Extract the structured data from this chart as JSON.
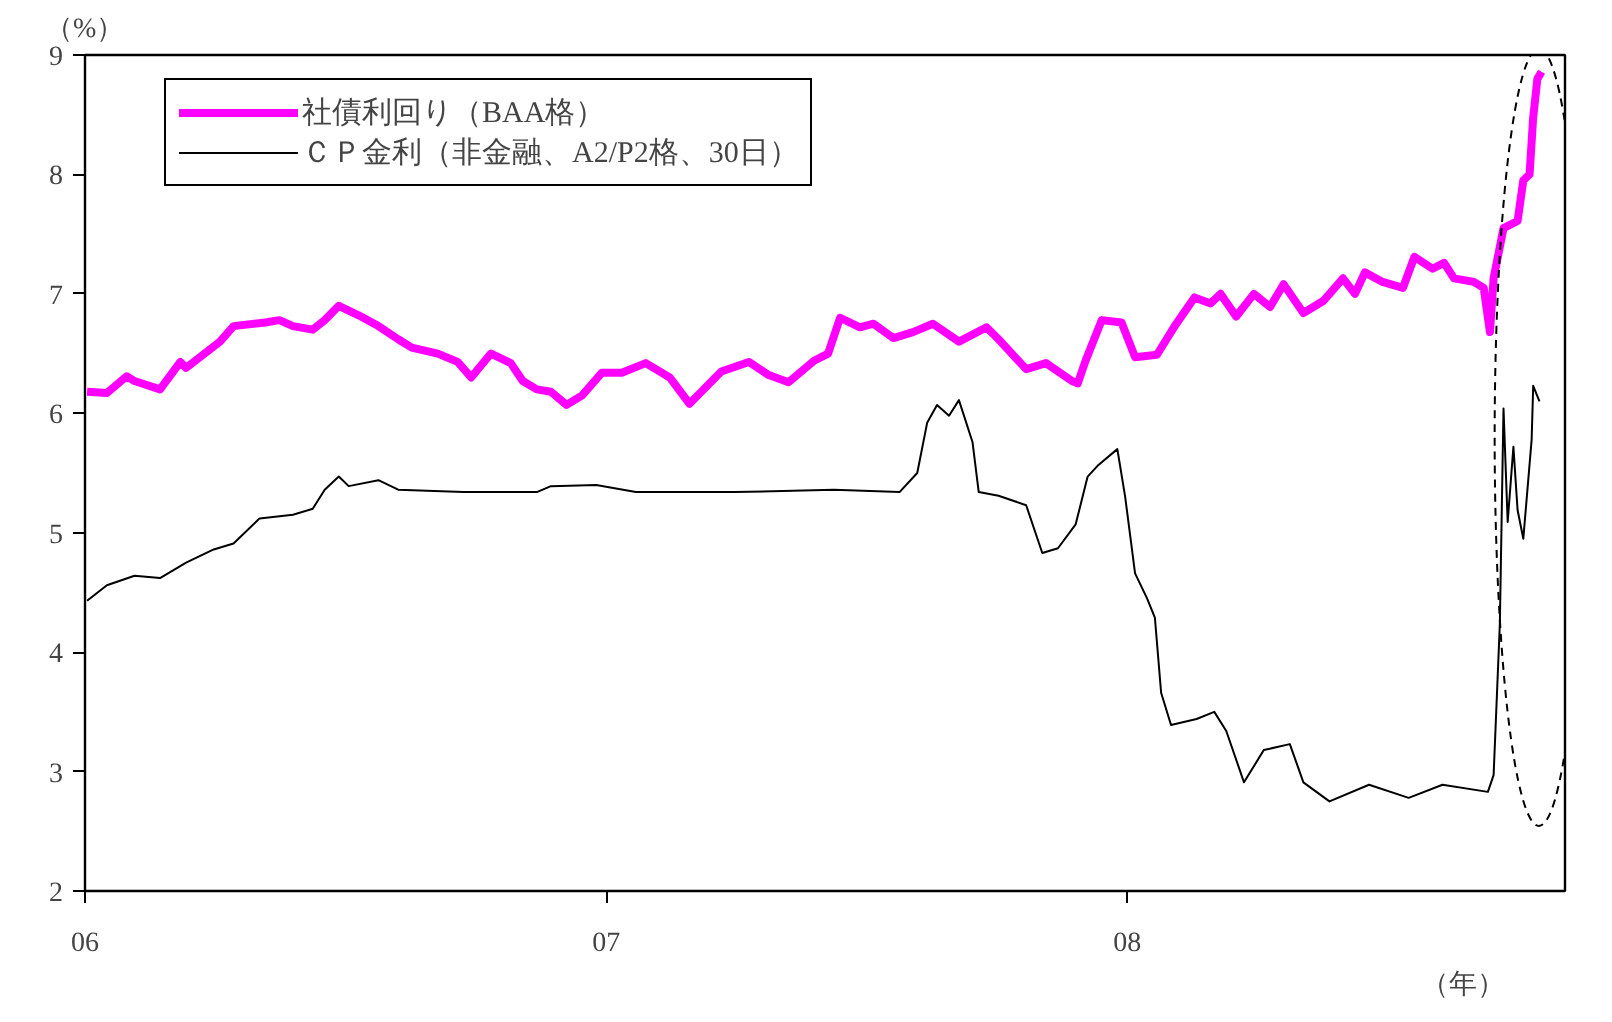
{
  "chart_data": {
    "type": "line",
    "ylabel": "（%）",
    "xlabel": "（年）",
    "xlim": [
      2006,
      2008.84
    ],
    "xticks": [
      {
        "value": 2006,
        "label": "06"
      },
      {
        "value": 2007,
        "label": "07"
      },
      {
        "value": 2008,
        "label": "08"
      }
    ],
    "ylim": [
      2,
      9
    ],
    "yticks": [
      2,
      3,
      4,
      5,
      6,
      7,
      8,
      9
    ],
    "grid": false,
    "legend": "top left",
    "line_style": "solid",
    "series": [
      {
        "name": "社債利回り（BAA格）",
        "color": "#ff00ff",
        "x": [
          2006.004,
          2006.042,
          2006.08,
          2006.095,
          2006.144,
          2006.183,
          2006.194,
          2006.259,
          2006.285,
          2006.346,
          2006.373,
          2006.399,
          2006.437,
          2006.46,
          2006.487,
          2006.525,
          2006.563,
          2006.601,
          2006.627,
          2006.677,
          2006.715,
          2006.741,
          2006.779,
          2006.817,
          2006.84,
          2006.867,
          2006.894,
          2006.924,
          2006.954,
          2006.992,
          2007.03,
          2007.076,
          2007.122,
          2007.16,
          2007.221,
          2007.274,
          2007.312,
          2007.35,
          2007.399,
          2007.426,
          2007.449,
          2007.487,
          2007.513,
          2007.551,
          2007.589,
          2007.627,
          2007.677,
          2007.73,
          2007.753,
          2007.806,
          2007.844,
          2007.894,
          2007.905,
          2007.92,
          2007.951,
          2007.989,
          2008.015,
          2008.057,
          2008.091,
          2008.129,
          2008.16,
          2008.179,
          2008.209,
          2008.243,
          2008.274,
          2008.3,
          2008.338,
          2008.376,
          2008.414,
          2008.437,
          2008.456,
          2008.49,
          2008.529,
          2008.551,
          2008.586,
          2008.608,
          2008.627,
          2008.665,
          2008.684,
          2008.696,
          2008.703,
          2008.722,
          2008.749,
          2008.76,
          2008.772,
          2008.779,
          2008.787,
          2008.795
        ],
        "values": [
          6.18,
          6.17,
          6.31,
          6.27,
          6.2,
          6.43,
          6.38,
          6.6,
          6.73,
          6.76,
          6.78,
          6.73,
          6.7,
          6.78,
          6.9,
          6.82,
          6.73,
          6.62,
          6.55,
          6.5,
          6.43,
          6.3,
          6.5,
          6.42,
          6.27,
          6.2,
          6.18,
          6.07,
          6.15,
          6.34,
          6.34,
          6.42,
          6.3,
          6.08,
          6.35,
          6.43,
          6.32,
          6.26,
          6.44,
          6.5,
          6.8,
          6.72,
          6.75,
          6.63,
          6.68,
          6.75,
          6.6,
          6.72,
          6.62,
          6.37,
          6.42,
          6.27,
          6.25,
          6.44,
          6.78,
          6.76,
          6.47,
          6.49,
          6.73,
          6.97,
          6.92,
          7.0,
          6.81,
          7.0,
          6.89,
          7.08,
          6.84,
          6.94,
          7.13,
          7.0,
          7.18,
          7.1,
          7.05,
          7.31,
          7.21,
          7.26,
          7.13,
          7.1,
          7.05,
          6.68,
          7.13,
          7.55,
          7.61,
          7.95,
          8.0,
          8.48,
          8.8,
          8.86
        ]
      },
      {
        "name": "ＣＰ金利（非金融、A2/P2格、30日）",
        "color": "#000000",
        "x": [
          2006.004,
          2006.042,
          2006.095,
          2006.144,
          2006.194,
          2006.247,
          2006.285,
          2006.335,
          2006.399,
          2006.437,
          2006.46,
          2006.487,
          2006.506,
          2006.563,
          2006.601,
          2006.726,
          2006.856,
          2006.867,
          2006.894,
          2006.981,
          2007.057,
          2007.247,
          2007.437,
          2007.563,
          2007.597,
          2007.616,
          2007.635,
          2007.658,
          2007.677,
          2007.703,
          2007.715,
          2007.753,
          2007.806,
          2007.837,
          2007.867,
          2007.901,
          2007.924,
          2007.943,
          2007.981,
          2007.996,
          2008.015,
          2008.038,
          2008.053,
          2008.065,
          2008.084,
          2008.133,
          2008.167,
          2008.19,
          2008.224,
          2008.262,
          2008.312,
          2008.338,
          2008.388,
          2008.464,
          2008.54,
          2008.605,
          2008.692,
          2008.703,
          2008.715,
          2008.722,
          2008.73,
          2008.741,
          2008.749,
          2008.76,
          2008.776,
          2008.779,
          2008.791
        ],
        "values": [
          4.43,
          4.56,
          4.64,
          4.62,
          4.75,
          4.86,
          4.91,
          5.12,
          5.15,
          5.2,
          5.36,
          5.47,
          5.39,
          5.44,
          5.36,
          5.34,
          5.34,
          5.34,
          5.39,
          5.4,
          5.34,
          5.34,
          5.36,
          5.34,
          5.5,
          5.92,
          6.07,
          5.98,
          6.11,
          5.76,
          5.34,
          5.31,
          5.23,
          4.83,
          4.87,
          5.07,
          5.47,
          5.56,
          5.7,
          5.3,
          4.66,
          4.45,
          4.29,
          3.66,
          3.39,
          3.44,
          3.5,
          3.34,
          2.91,
          3.18,
          3.23,
          2.91,
          2.75,
          2.89,
          2.78,
          2.89,
          2.83,
          2.97,
          4.24,
          6.04,
          5.09,
          5.72,
          5.19,
          4.95,
          5.78,
          6.23,
          6.1
        ]
      }
    ]
  }
}
